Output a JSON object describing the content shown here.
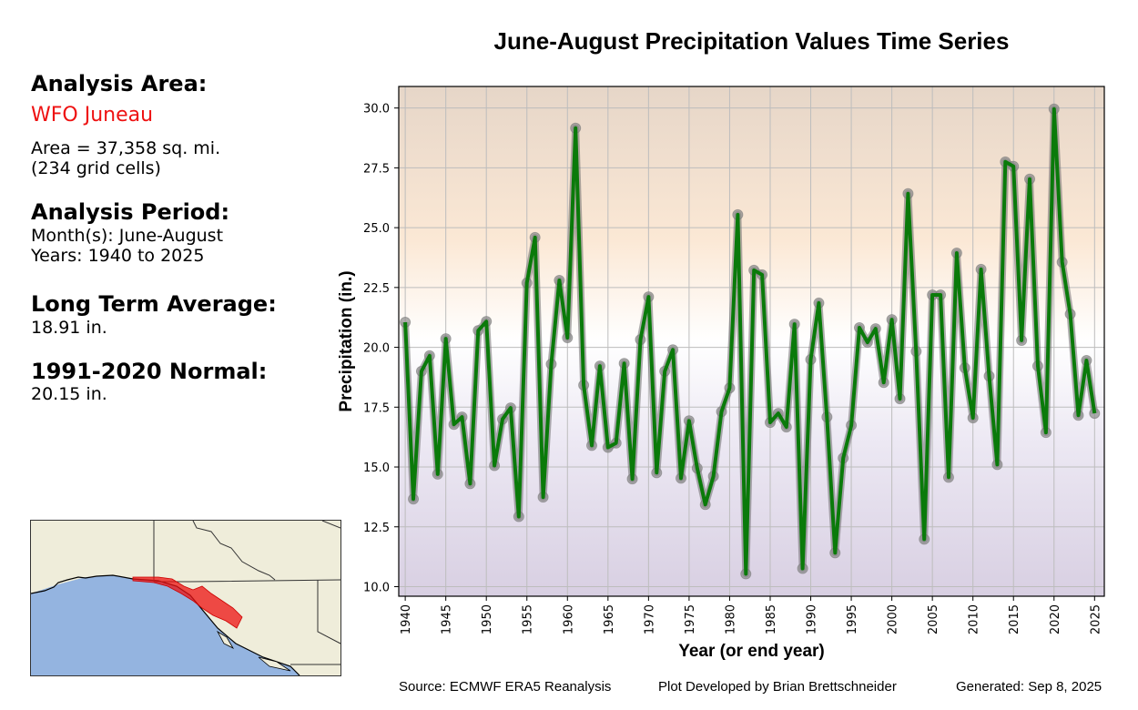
{
  "sidebar": {
    "analysis_area_heading": "Analysis Area:",
    "area_name": "WFO Juneau",
    "area_size": "Area = 37,358 sq. mi.",
    "grid_cells": "(234 grid cells)",
    "analysis_period_heading": "Analysis Period:",
    "months": "Month(s): June-August",
    "years": "Years: 1940 to 2025",
    "long_term_avg_heading": "Long Term Average:",
    "long_term_avg_value": "18.91 in.",
    "normal_heading": "1991-2020 Normal:",
    "normal_value": "20.15 in."
  },
  "footer": {
    "source": "Source: ECMWF ERA5 Reanalysis",
    "developer": "Plot Developed by Brian Brettschneider",
    "generated": "Generated: Sep 8, 2025"
  },
  "colors": {
    "line": "#0a7a0a",
    "marker": "#8c8c8c",
    "area_highlight": "#ee1111",
    "ocean": "#94b4e0",
    "land": "#efedda",
    "bg_top": "#e6d6c8",
    "bg_upper": "#fbe8d5",
    "bg_mid": "#ffffff",
    "bg_lower": "#ece8f3",
    "bg_bottom": "#d8cfe2"
  },
  "chart_data": {
    "type": "line",
    "title": "June-August Precipitation Values Time Series",
    "xlabel": "Year (or end year)",
    "ylabel": "Precipitation (in.)",
    "xlim": [
      1939.2,
      2026.2
    ],
    "ylim": [
      9.6,
      30.9
    ],
    "grid": true,
    "x_ticks": [
      1940,
      1945,
      1950,
      1955,
      1960,
      1965,
      1970,
      1975,
      1980,
      1985,
      1990,
      1995,
      2000,
      2005,
      2010,
      2015,
      2020,
      2025
    ],
    "y_ticks": [
      "10.0",
      "12.5",
      "15.0",
      "17.5",
      "20.0",
      "22.5",
      "25.0",
      "27.5",
      "30.0"
    ],
    "series": [
      {
        "name": "June-August Precipitation",
        "x": [
          1940,
          1941,
          1942,
          1943,
          1944,
          1945,
          1946,
          1947,
          1948,
          1949,
          1950,
          1951,
          1952,
          1953,
          1954,
          1955,
          1956,
          1957,
          1958,
          1959,
          1960,
          1961,
          1962,
          1963,
          1964,
          1965,
          1966,
          1967,
          1968,
          1969,
          1970,
          1971,
          1972,
          1973,
          1974,
          1975,
          1976,
          1977,
          1978,
          1979,
          1980,
          1981,
          1982,
          1983,
          1984,
          1985,
          1986,
          1987,
          1988,
          1989,
          1990,
          1991,
          1992,
          1993,
          1994,
          1995,
          1996,
          1997,
          1998,
          1999,
          2000,
          2001,
          2002,
          2003,
          2004,
          2005,
          2006,
          2007,
          2008,
          2009,
          2010,
          2011,
          2012,
          2013,
          2014,
          2015,
          2016,
          2017,
          2018,
          2019,
          2020,
          2021,
          2022,
          2023,
          2024,
          2025
        ],
        "values": [
          21.05,
          13.66,
          19.0,
          19.65,
          14.7,
          20.36,
          16.78,
          17.09,
          14.3,
          20.7,
          21.08,
          15.06,
          17.0,
          17.47,
          12.93,
          22.69,
          24.59,
          13.74,
          19.3,
          22.8,
          20.4,
          29.16,
          18.42,
          15.9,
          19.22,
          15.82,
          16.0,
          19.33,
          14.5,
          20.32,
          22.11,
          14.76,
          19.0,
          19.9,
          14.53,
          16.93,
          14.95,
          13.43,
          14.61,
          17.31,
          18.3,
          25.54,
          10.53,
          23.22,
          23.03,
          16.86,
          17.24,
          16.67,
          20.97,
          10.76,
          19.49,
          21.85,
          17.09,
          11.41,
          15.37,
          16.74,
          20.82,
          20.21,
          20.78,
          18.53,
          21.16,
          17.85,
          26.42,
          19.83,
          11.98,
          22.19,
          22.19,
          14.57,
          23.94,
          19.14,
          17.05,
          23.26,
          18.8,
          15.1,
          27.75,
          27.56,
          20.29,
          27.03,
          19.22,
          16.44,
          29.96,
          23.56,
          21.39,
          17.16,
          19.45,
          17.24
        ]
      }
    ]
  }
}
